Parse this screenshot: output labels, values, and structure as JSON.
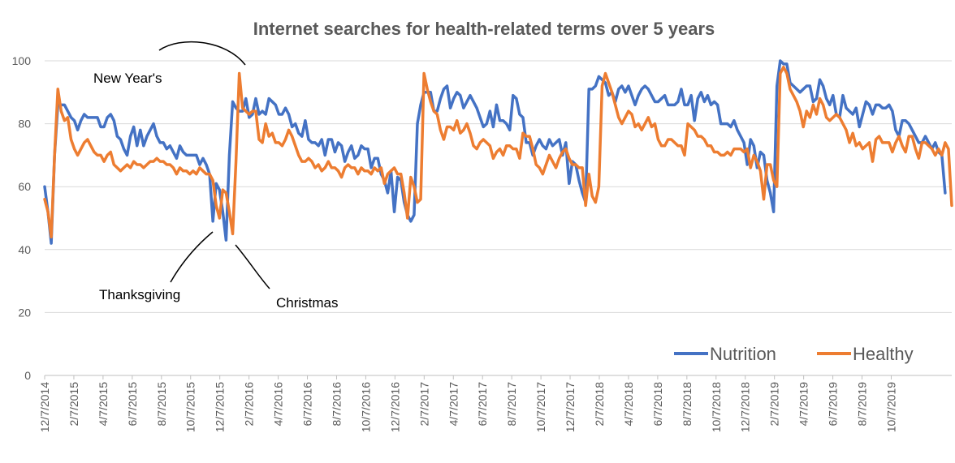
{
  "chart_data": {
    "type": "line",
    "title": "Internet searches for health-related terms over 5 years",
    "xlabel": "",
    "ylabel": "",
    "ylim": [
      0,
      100
    ],
    "yticks": [
      0,
      20,
      40,
      60,
      80,
      100
    ],
    "x_start": "2014-12-07",
    "x_step_days": 7,
    "xtick_labels": [
      "12/7/2014",
      "2/7/2015",
      "4/7/2015",
      "6/7/2015",
      "8/7/2015",
      "10/7/2015",
      "12/7/2015",
      "2/7/2016",
      "4/7/2016",
      "6/7/2016",
      "8/7/2016",
      "10/7/2016",
      "12/7/2016",
      "2/7/2017",
      "4/7/2017",
      "6/7/2017",
      "8/7/2017",
      "10/7/2017",
      "12/7/2017",
      "2/7/2018",
      "4/7/2018",
      "6/7/2018",
      "8/7/2018",
      "10/7/2018",
      "12/7/2018",
      "2/7/2019",
      "4/7/2019",
      "6/7/2019",
      "8/7/2019",
      "10/7/2019"
    ],
    "grid": true,
    "legend_position": "bottom-right",
    "series": [
      {
        "name": "Nutrition",
        "color": "#4472C4",
        "values": [
          60,
          52,
          42,
          70,
          86,
          86,
          86,
          84,
          82,
          81,
          78,
          81,
          83,
          82,
          82,
          82,
          82,
          79,
          79,
          82,
          83,
          81,
          76,
          75,
          72,
          70,
          76,
          79,
          73,
          78,
          73,
          76,
          78,
          80,
          76,
          74,
          74,
          72,
          73,
          71,
          69,
          73,
          71,
          70,
          70,
          70,
          70,
          67,
          69,
          67,
          64,
          49,
          61,
          59,
          52,
          43,
          70,
          87,
          85,
          84,
          84,
          88,
          82,
          83,
          88,
          83,
          84,
          83,
          88,
          87,
          86,
          83,
          83,
          85,
          83,
          79,
          80,
          77,
          76,
          81,
          75,
          74,
          74,
          73,
          75,
          70,
          75,
          75,
          71,
          74,
          73,
          68,
          71,
          73,
          69,
          70,
          73,
          72,
          72,
          66,
          69,
          69,
          64,
          62,
          58,
          65,
          52,
          63,
          62,
          55,
          51,
          49,
          51,
          80,
          86,
          90,
          90,
          90,
          84,
          84,
          88,
          91,
          92,
          85,
          88,
          90,
          89,
          85,
          87,
          89,
          87,
          85,
          82,
          79,
          80,
          84,
          79,
          86,
          81,
          81,
          80,
          78,
          89,
          88,
          83,
          82,
          74,
          74,
          70,
          73,
          75,
          73,
          72,
          75,
          73,
          74,
          75,
          70,
          74,
          61,
          68,
          67,
          62,
          58,
          55,
          91,
          91,
          92,
          95,
          94,
          93,
          89,
          90,
          87,
          91,
          92,
          90,
          92,
          89,
          86,
          89,
          91,
          92,
          91,
          89,
          87,
          87,
          88,
          89,
          86,
          86,
          86,
          87,
          91,
          86,
          86,
          89,
          81,
          88,
          90,
          87,
          89,
          86,
          87,
          86,
          80,
          80,
          80,
          79,
          81,
          78,
          76,
          74,
          67,
          75,
          73,
          66,
          71,
          70,
          62,
          58,
          52,
          92,
          100,
          99,
          99,
          93,
          92,
          91,
          90,
          91,
          92,
          92,
          87,
          88,
          94,
          92,
          88,
          86,
          89,
          83,
          82,
          89,
          85,
          84,
          83,
          85,
          79,
          83,
          87,
          86,
          83,
          86,
          86,
          85,
          85,
          86,
          84,
          78,
          76,
          81,
          81,
          80,
          78,
          76,
          74,
          74,
          76,
          74,
          72,
          74,
          71,
          70,
          58
        ]
      },
      {
        "name": "Healthy",
        "color": "#ED7D31",
        "values": [
          56,
          52,
          44,
          70,
          91,
          84,
          81,
          82,
          75,
          72,
          70,
          72,
          74,
          75,
          73,
          71,
          70,
          70,
          68,
          70,
          71,
          67,
          66,
          65,
          66,
          67,
          66,
          68,
          67,
          67,
          66,
          67,
          68,
          68,
          69,
          68,
          68,
          67,
          67,
          66,
          64,
          66,
          65,
          65,
          64,
          65,
          64,
          66,
          65,
          64,
          64,
          62,
          54,
          50,
          59,
          58,
          52,
          45,
          68,
          96,
          85,
          84,
          83,
          84,
          84,
          75,
          74,
          80,
          76,
          77,
          74,
          74,
          73,
          75,
          78,
          76,
          73,
          70,
          68,
          68,
          69,
          68,
          66,
          67,
          65,
          66,
          68,
          66,
          66,
          65,
          63,
          66,
          67,
          66,
          66,
          64,
          66,
          65,
          65,
          64,
          66,
          65,
          66,
          61,
          64,
          65,
          66,
          64,
          64,
          58,
          50,
          63,
          60,
          55,
          56,
          96,
          91,
          87,
          84,
          83,
          78,
          75,
          79,
          79,
          78,
          81,
          77,
          78,
          80,
          77,
          73,
          72,
          74,
          75,
          74,
          73,
          69,
          71,
          72,
          70,
          73,
          73,
          72,
          72,
          69,
          77,
          76,
          76,
          72,
          67,
          66,
          64,
          67,
          70,
          68,
          66,
          69,
          71,
          72,
          69,
          67,
          67,
          66,
          66,
          54,
          64,
          57,
          55,
          60,
          92,
          96,
          93,
          90,
          86,
          82,
          80,
          82,
          84,
          83,
          79,
          80,
          78,
          80,
          82,
          79,
          80,
          75,
          73,
          73,
          75,
          75,
          74,
          73,
          73,
          70,
          80,
          79,
          78,
          76,
          76,
          75,
          73,
          73,
          71,
          71,
          70,
          70,
          71,
          70,
          72,
          72,
          72,
          71,
          72,
          66,
          70,
          68,
          65,
          56,
          67,
          67,
          62,
          60,
          96,
          98,
          96,
          91,
          89,
          87,
          84,
          79,
          84,
          82,
          86,
          83,
          88,
          86,
          82,
          81,
          82,
          83,
          82,
          80,
          78,
          74,
          77,
          73,
          74,
          72,
          73,
          74,
          68,
          75,
          76,
          74,
          74,
          74,
          71,
          74,
          76,
          73,
          71,
          76,
          76,
          72,
          69,
          74,
          74,
          73,
          72,
          70,
          72,
          70,
          74,
          72,
          54
        ]
      }
    ],
    "legend": [
      "Nutrition",
      "Healthy"
    ],
    "annotations": [
      {
        "text": "New Year's"
      },
      {
        "text": "Thanksgiving"
      },
      {
        "text": "Christmas"
      }
    ]
  },
  "colors": {
    "nutrition": "#4472C4",
    "healthy": "#ED7D31",
    "grid": "#D9D9D9",
    "axis": "#BFBFBF",
    "text": "#595959"
  }
}
